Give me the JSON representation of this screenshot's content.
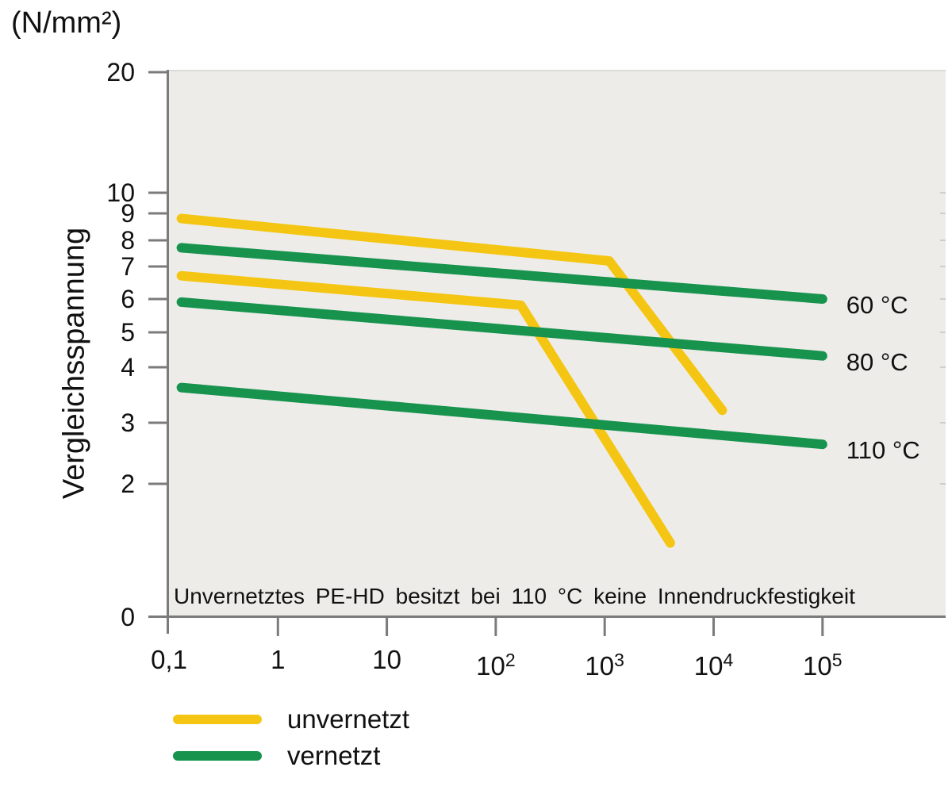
{
  "chart_data": {
    "type": "line",
    "x_scale": "log",
    "y_scale": "log",
    "y_unit_label": "(N/mm²)",
    "ylabel": "Vergleichsspannung",
    "x_ticks": [
      {
        "text": "0,1",
        "value": 0.1
      },
      {
        "text": "1",
        "value": 1
      },
      {
        "text": "10",
        "value": 10
      },
      {
        "text": "10",
        "sup": "2",
        "value": 100
      },
      {
        "text": "10",
        "sup": "3",
        "value": 1000
      },
      {
        "text": "10",
        "sup": "4",
        "value": 10000
      },
      {
        "text": "10",
        "sup": "5",
        "value": 100000
      }
    ],
    "y_ticks": [
      "20",
      "10",
      "9",
      "8",
      "7",
      "6",
      "5",
      "4",
      "3",
      "2",
      "0"
    ],
    "x_range": [
      0.1,
      100000
    ],
    "colors": {
      "unvernetzt": "#F4C613",
      "vernetzt": "#17934E"
    },
    "series": [
      {
        "name": "unvernetzt-upper",
        "group": "unvernetzt",
        "label": "",
        "points": [
          [
            0.13,
            8.8
          ],
          [
            1100,
            7.2
          ],
          [
            12000,
            3.2
          ]
        ]
      },
      {
        "name": "unvernetzt-lower",
        "group": "unvernetzt",
        "label": "",
        "points": [
          [
            0.13,
            6.7
          ],
          [
            170,
            5.8
          ],
          [
            4000,
            1.35
          ]
        ]
      },
      {
        "name": "vernetzt-60C",
        "group": "vernetzt",
        "label": "60 °C",
        "points": [
          [
            0.13,
            7.7
          ],
          [
            100000,
            6.0
          ]
        ]
      },
      {
        "name": "vernetzt-80C",
        "group": "vernetzt",
        "label": "80 °C",
        "points": [
          [
            0.13,
            5.9
          ],
          [
            100000,
            4.3
          ]
        ]
      },
      {
        "name": "vernetzt-110C",
        "group": "vernetzt",
        "label": "110 °C",
        "points": [
          [
            0.13,
            3.6
          ],
          [
            100000,
            2.6
          ]
        ]
      }
    ],
    "annotation": "Unvernetztes PE-HD besitzt bei 110 °C keine Innendruckfestigkeit",
    "legend": [
      {
        "label": "unvernetzt",
        "color": "#F4C613"
      },
      {
        "label": "vernetzt",
        "color": "#17934E"
      }
    ]
  }
}
